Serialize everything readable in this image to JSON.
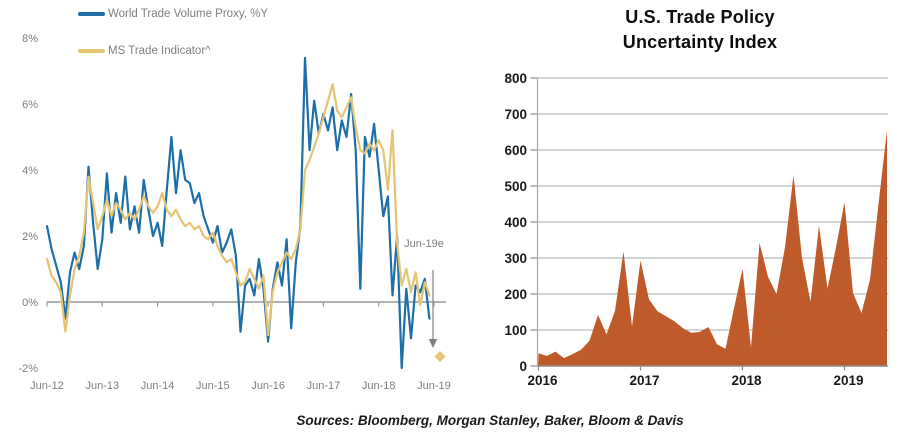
{
  "footer": {
    "sources": "Sources: Bloomberg, Morgan Stanley, Baker, Bloom & Davis"
  },
  "chart_data": [
    {
      "type": "line",
      "title": "",
      "x_unit": "monthly, Jun-2012 to mid-2019",
      "x_tick_labels": [
        "Jun-12",
        "Jun-13",
        "Jun-14",
        "Jun-15",
        "Jun-16",
        "Jun-17",
        "Jun-18",
        "Jun-19"
      ],
      "y_tick_labels": [
        "8%",
        "6%",
        "4%",
        "2%",
        "0%",
        "-2%"
      ],
      "ylim": [
        -2,
        8
      ],
      "grid": false,
      "legend_position": "top-left",
      "axis_color": "#999999",
      "label_color": "#7f7f7f",
      "series": [
        {
          "name": "World Trade Volume Proxy, %Y",
          "color": "#1d6fa8",
          "values": [
            2.3,
            1.6,
            1.1,
            0.6,
            -0.5,
            0.9,
            1.5,
            1.0,
            1.7,
            4.1,
            2.4,
            1.0,
            1.9,
            3.9,
            2.1,
            3.3,
            2.4,
            3.8,
            2.2,
            2.9,
            2.1,
            3.7,
            2.8,
            2.0,
            2.4,
            1.7,
            3.4,
            5.0,
            3.3,
            4.6,
            3.7,
            3.6,
            3.0,
            3.3,
            2.6,
            2.2,
            1.8,
            2.3,
            1.5,
            1.8,
            2.2,
            1.4,
            -0.9,
            0.5,
            0.7,
            0.2,
            1.3,
            0.4,
            -1.2,
            0.4,
            1.2,
            0.5,
            1.9,
            -0.8,
            1.2,
            2.3,
            7.4,
            4.6,
            6.1,
            5.1,
            5.7,
            5.2,
            5.9,
            4.6,
            5.5,
            5.0,
            6.3,
            4.6,
            0.4,
            5.0,
            4.4,
            5.4,
            4.0,
            2.6,
            3.2,
            0.2,
            2.0,
            -2.0,
            0.4,
            -1.1,
            0.5,
            0.3,
            0.7,
            -0.5
          ]
        },
        {
          "name": "MS Trade Indicator^",
          "color": "#e5c473",
          "values": [
            1.3,
            0.8,
            0.6,
            0.3,
            -0.9,
            0.2,
            1.0,
            1.4,
            2.1,
            3.8,
            3.0,
            2.2,
            2.6,
            3.1,
            2.6,
            3.0,
            2.8,
            2.5,
            2.7,
            2.5,
            2.8,
            3.2,
            2.9,
            2.7,
            2.9,
            3.3,
            2.8,
            2.6,
            2.8,
            2.5,
            2.3,
            2.4,
            2.2,
            2.3,
            2.0,
            1.9,
            2.1,
            1.7,
            1.4,
            1.2,
            1.3,
            0.9,
            0.5,
            0.6,
            1.0,
            0.7,
            0.4,
            0.8,
            -1.0,
            0.3,
            0.9,
            1.2,
            1.5,
            1.3,
            1.6,
            2.2,
            4.0,
            4.3,
            4.7,
            5.1,
            5.6,
            6.1,
            6.6,
            5.8,
            5.6,
            5.9,
            6.2,
            5.3,
            4.6,
            4.5,
            4.8,
            4.6,
            4.9,
            4.6,
            3.4,
            5.2,
            1.8,
            0.5,
            1.0,
            0.3,
            0.9,
            -0.1,
            0.6,
            0.2
          ]
        }
      ],
      "annotation": {
        "label": "Jun-19e",
        "estimate_value": -1.65,
        "marker_shape": "diamond",
        "marker_color": "#e5c473",
        "arrow_color": "#808080"
      }
    },
    {
      "type": "area",
      "title_lines": [
        "U.S. Trade Policy",
        "Uncertainty Index"
      ],
      "x_unit": "monthly, Jan-2016 to Jun-2019",
      "x_tick_labels": [
        "2016",
        "2017",
        "2018",
        "2019"
      ],
      "y_tick_labels": [
        "800",
        "700",
        "600",
        "500",
        "400",
        "300",
        "200",
        "100",
        "0"
      ],
      "ylim": [
        0,
        800
      ],
      "grid": true,
      "color": "#bf5b2a",
      "grid_color": "#ababab",
      "axis_color": "#8c8c8c",
      "values": [
        35,
        28,
        40,
        22,
        33,
        45,
        70,
        142,
        88,
        153,
        318,
        110,
        293,
        185,
        152,
        138,
        124,
        105,
        92,
        95,
        108,
        60,
        48,
        160,
        270,
        52,
        342,
        248,
        200,
        330,
        530,
        300,
        178,
        390,
        215,
        330,
        455,
        203,
        147,
        240,
        450,
        655
      ]
    }
  ]
}
